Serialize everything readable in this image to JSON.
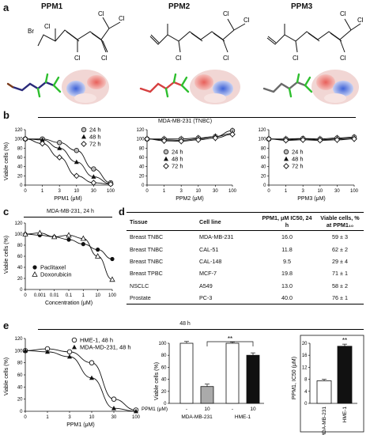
{
  "panels": {
    "a": "a",
    "b": "b",
    "c": "c",
    "d": "d",
    "e": "e"
  },
  "compounds": [
    {
      "name": "PPM1"
    },
    {
      "name": "PPM2"
    },
    {
      "name": "PPM3"
    }
  ],
  "atoms": {
    "br": "Br",
    "cl": "Cl"
  },
  "panel_b": {
    "header": "MDA-MB-231 (TNBC)",
    "ylabel": "Viable cells (%)",
    "legend": [
      "24 h",
      "48 h",
      "72 h"
    ],
    "yticks": [
      "0",
      "20",
      "40",
      "60",
      "80",
      "100",
      "120"
    ],
    "xticks": [
      "0",
      "1",
      "3",
      "10",
      "30",
      "100"
    ],
    "xlabels": [
      "PPM1 (μM)",
      "PPM2 (μM)",
      "PPM3 (μM)"
    ]
  },
  "panel_c": {
    "header": "MDA-MB-231, 24 h",
    "ylabel": "Viable cells (%)",
    "xlabel": "Concentration (μM)",
    "yticks": [
      "0",
      "20",
      "40",
      "60",
      "80",
      "100",
      "120"
    ],
    "xticks": [
      "0",
      "0.001",
      "0.01",
      "0.1",
      "1",
      "10",
      "100"
    ],
    "legend": [
      "Paclitaxel",
      "Doxorubicin"
    ]
  },
  "panel_d": {
    "headers": [
      "Tissue",
      "Cell line",
      "PPM1, μM IC50, 24 h",
      "Viable cells, % at PPM1₁₀"
    ],
    "rows": [
      [
        "Breast TNBC",
        "MDA-MB-231",
        "16.0",
        "59 ± 3"
      ],
      [
        "Breast TNBC",
        "CAL-51",
        "11.8",
        "62 ± 2"
      ],
      [
        "Breast TNBC",
        "CAL-148",
        "9.5",
        "29 ± 4"
      ],
      [
        "Breast TPBC",
        "MCF-7",
        "19.8",
        "71 ± 1"
      ],
      [
        "NSCLC",
        "A549",
        "13.0",
        "58 ± 2"
      ],
      [
        "Prostate",
        "PC-3",
        "40.0",
        "76 ± 1"
      ]
    ]
  },
  "panel_e": {
    "header": "48 h",
    "ylabel": "Viable cells (%)",
    "xlabel": "PPM1 (μM)",
    "legend": [
      "HME-1, 48 h",
      "MDA-MD-231, 48 h"
    ],
    "yticks": [
      "0",
      "20",
      "40",
      "60",
      "80",
      "100",
      "120"
    ],
    "xticks": [
      "0",
      "1",
      "3",
      "10",
      "30",
      "100"
    ],
    "bar_ylabel": "Viable cells (%)",
    "bar_yticks": [
      "0",
      "20",
      "40",
      "60",
      "80",
      "100"
    ],
    "bar_xrow_label": "PPM1 (μM)",
    "bar_xrow": [
      "-",
      "10",
      "-",
      "10"
    ],
    "bar_groups": [
      "MDA-MB-231",
      "HME-1"
    ],
    "sig": "**",
    "ic50_ylabel": "PPM1, IC50 (μM)",
    "ic50_yticks": [
      "0",
      "4",
      "8",
      "12",
      "16",
      "20"
    ],
    "ic50_cats": [
      "MDA-MB-231",
      "HME-1"
    ]
  },
  "chart_data": [
    {
      "type": "line",
      "id": "b1",
      "x": [
        0,
        1,
        3,
        10,
        30,
        100
      ],
      "series": [
        {
          "name": "24 h",
          "values": [
            100,
            100,
            92,
            75,
            35,
            5
          ]
        },
        {
          "name": "48 h",
          "values": [
            100,
            98,
            80,
            50,
            18,
            3
          ]
        },
        {
          "name": "72 h",
          "values": [
            100,
            90,
            60,
            20,
            5,
            2
          ]
        }
      ],
      "ylim": [
        0,
        120
      ]
    },
    {
      "type": "line",
      "id": "b2",
      "x": [
        0,
        1,
        3,
        10,
        30,
        100
      ],
      "series": [
        {
          "name": "24 h",
          "values": [
            100,
            100,
            100,
            102,
            105,
            118
          ]
        },
        {
          "name": "48 h",
          "values": [
            100,
            98,
            97,
            100,
            105,
            112
          ]
        },
        {
          "name": "72 h",
          "values": [
            100,
            96,
            95,
            98,
            102,
            110
          ]
        }
      ],
      "ylim": [
        0,
        120
      ]
    },
    {
      "type": "line",
      "id": "b3",
      "x": [
        0,
        1,
        3,
        10,
        30,
        100
      ],
      "series": [
        {
          "name": "24 h",
          "values": [
            100,
            100,
            101,
            100,
            102,
            104
          ]
        },
        {
          "name": "48 h",
          "values": [
            100,
            98,
            100,
            98,
            100,
            102
          ]
        },
        {
          "name": "72 h",
          "values": [
            100,
            97,
            98,
            97,
            98,
            100
          ]
        }
      ],
      "ylim": [
        0,
        120
      ]
    },
    {
      "type": "line",
      "id": "c",
      "x": [
        0,
        0.001,
        0.01,
        0.1,
        1,
        10,
        100
      ],
      "series": [
        {
          "name": "Paclitaxel",
          "values": [
            100,
            98,
            95,
            90,
            82,
            72,
            55
          ]
        },
        {
          "name": "Doxorubicin",
          "values": [
            100,
            102,
            95,
            98,
            92,
            60,
            18
          ]
        }
      ],
      "ylim": [
        0,
        120
      ]
    },
    {
      "type": "line",
      "id": "e1",
      "x": [
        0,
        1,
        3,
        10,
        30,
        100
      ],
      "series": [
        {
          "name": "HME-1, 48 h",
          "values": [
            100,
            103,
            98,
            80,
            20,
            2
          ]
        },
        {
          "name": "MDA-MD-231, 48 h",
          "values": [
            100,
            98,
            90,
            55,
            5,
            0
          ]
        }
      ],
      "ylim": [
        0,
        120
      ]
    },
    {
      "type": "bar",
      "id": "e2",
      "categories": [
        "MDA-MB-231 -",
        "MDA-MB-231 10",
        "HME-1 -",
        "HME-1 10"
      ],
      "values": [
        100,
        28,
        100,
        80
      ],
      "errors": [
        3,
        4,
        2,
        4
      ],
      "ylim": [
        0,
        100
      ]
    },
    {
      "type": "bar",
      "id": "e3",
      "categories": [
        "MDA-MB-231",
        "HME-1"
      ],
      "values": [
        7.5,
        19
      ],
      "errors": [
        0.5,
        0.7
      ],
      "ylim": [
        0,
        20
      ]
    }
  ]
}
